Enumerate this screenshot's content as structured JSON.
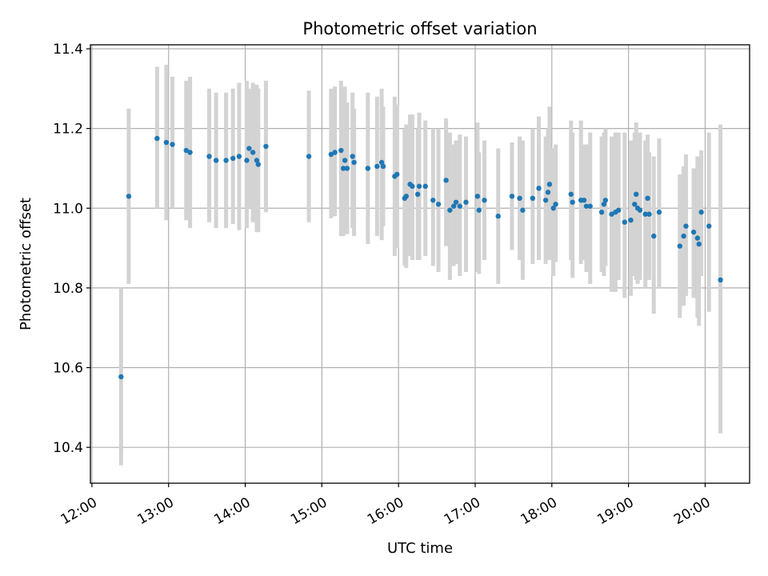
{
  "chart_data": {
    "type": "scatter",
    "title": "Photometric offset variation",
    "xlabel": "UTC time",
    "ylabel": "Photometric offset",
    "x_unit": "hours",
    "xlim": [
      11.98,
      20.58
    ],
    "ylim": [
      10.31,
      11.41
    ],
    "x_ticks": [
      12,
      13,
      14,
      15,
      16,
      17,
      18,
      19,
      20
    ],
    "x_tick_labels": [
      "12:00",
      "13:00",
      "14:00",
      "15:00",
      "16:00",
      "17:00",
      "18:00",
      "19:00",
      "20:00"
    ],
    "y_ticks": [
      10.4,
      10.6,
      10.8,
      11.0,
      11.2,
      11.4
    ],
    "y_tick_labels": [
      "10.4",
      "10.6",
      "10.8",
      "11.0",
      "11.2",
      "11.4"
    ],
    "grid": true,
    "point_color": "#1f77b4",
    "errorbar_color": "#d3d3d3",
    "series": [
      {
        "points": [
          [
            12.38,
            10.577,
            10.355,
            10.8
          ],
          [
            12.48,
            11.03,
            10.81,
            11.25
          ],
          [
            12.85,
            11.175,
            11.0,
            11.355
          ],
          [
            12.97,
            11.165,
            10.97,
            11.36
          ],
          [
            13.05,
            11.16,
            11.0,
            11.33
          ],
          [
            13.23,
            11.145,
            10.97,
            11.32
          ],
          [
            13.28,
            11.14,
            10.95,
            11.33
          ],
          [
            13.53,
            11.13,
            10.965,
            11.3
          ],
          [
            13.62,
            11.12,
            10.95,
            11.29
          ],
          [
            13.75,
            11.12,
            10.95,
            11.29
          ],
          [
            13.84,
            11.125,
            10.96,
            11.3
          ],
          [
            13.92,
            11.13,
            10.945,
            11.315
          ],
          [
            14.02,
            11.12,
            10.95,
            11.32
          ],
          [
            14.05,
            11.15,
            11.0,
            11.3
          ],
          [
            14.1,
            11.14,
            10.965,
            11.315
          ],
          [
            14.15,
            11.12,
            10.94,
            11.31
          ],
          [
            14.17,
            11.11,
            10.94,
            11.3
          ],
          [
            14.27,
            11.155,
            10.99,
            11.32
          ],
          [
            14.83,
            11.13,
            10.965,
            11.295
          ],
          [
            15.12,
            11.135,
            10.975,
            11.3
          ],
          [
            15.17,
            11.14,
            10.98,
            11.305
          ],
          [
            15.25,
            11.145,
            10.93,
            11.32
          ],
          [
            15.28,
            11.1,
            10.93,
            11.3
          ],
          [
            15.3,
            11.12,
            10.94,
            11.305
          ],
          [
            15.33,
            11.1,
            10.935,
            11.265
          ],
          [
            15.4,
            11.13,
            10.95,
            11.29
          ],
          [
            15.42,
            11.115,
            10.93,
            11.25
          ],
          [
            15.6,
            11.1,
            10.91,
            11.29
          ],
          [
            15.72,
            11.105,
            10.93,
            11.28
          ],
          [
            15.78,
            11.115,
            10.92,
            11.3
          ],
          [
            15.8,
            11.105,
            10.955,
            11.255
          ],
          [
            15.95,
            11.08,
            10.88,
            11.28
          ],
          [
            15.98,
            11.085,
            10.9,
            11.26
          ],
          [
            16.08,
            11.025,
            10.855,
            11.2
          ],
          [
            16.1,
            11.03,
            10.85,
            11.21
          ],
          [
            16.15,
            11.06,
            10.88,
            11.235
          ],
          [
            16.18,
            11.055,
            10.87,
            11.235
          ],
          [
            16.25,
            11.035,
            10.87,
            11.2
          ],
          [
            16.27,
            11.055,
            10.87,
            11.24
          ],
          [
            16.35,
            11.055,
            10.88,
            11.22
          ],
          [
            16.45,
            11.02,
            10.855,
            11.2
          ],
          [
            16.52,
            11.01,
            10.84,
            11.2
          ],
          [
            16.62,
            11.07,
            10.905,
            11.225
          ],
          [
            16.67,
            10.995,
            10.82,
            11.19
          ],
          [
            16.72,
            11.005,
            10.855,
            11.16
          ],
          [
            16.75,
            11.015,
            10.86,
            11.17
          ],
          [
            16.8,
            11.005,
            10.83,
            11.185
          ],
          [
            16.88,
            11.015,
            10.84,
            11.18
          ],
          [
            17.03,
            11.03,
            10.84,
            11.215
          ],
          [
            17.05,
            10.995,
            10.835,
            11.14
          ],
          [
            17.12,
            11.02,
            10.87,
            11.17
          ],
          [
            17.3,
            10.98,
            10.81,
            11.15
          ],
          [
            17.48,
            11.03,
            10.895,
            11.165
          ],
          [
            17.58,
            11.025,
            10.87,
            11.18
          ],
          [
            17.62,
            10.995,
            10.82,
            11.17
          ],
          [
            17.75,
            11.025,
            10.86,
            11.2
          ],
          [
            17.83,
            11.05,
            10.87,
            11.23
          ],
          [
            17.92,
            11.02,
            10.86,
            11.18
          ],
          [
            17.95,
            11.04,
            10.87,
            11.2
          ],
          [
            17.97,
            11.06,
            10.87,
            11.255
          ],
          [
            18.02,
            11.0,
            10.83,
            11.15
          ],
          [
            18.05,
            11.01,
            10.865,
            11.16
          ],
          [
            18.25,
            11.035,
            10.87,
            11.22
          ],
          [
            18.27,
            11.015,
            10.825,
            11.19
          ],
          [
            18.38,
            11.02,
            10.86,
            11.22
          ],
          [
            18.42,
            11.02,
            10.87,
            11.16
          ],
          [
            18.45,
            11.005,
            10.84,
            11.16
          ],
          [
            18.5,
            11.005,
            10.81,
            11.19
          ],
          [
            18.65,
            10.99,
            10.84,
            11.18
          ],
          [
            18.68,
            11.01,
            10.83,
            11.19
          ],
          [
            18.7,
            11.02,
            10.855,
            11.2
          ],
          [
            18.78,
            10.985,
            10.79,
            11.18
          ],
          [
            18.83,
            10.99,
            10.79,
            11.19
          ],
          [
            18.87,
            10.995,
            10.82,
            11.19
          ],
          [
            18.95,
            10.965,
            10.775,
            11.19
          ],
          [
            19.03,
            10.97,
            10.78,
            11.17
          ],
          [
            19.08,
            11.01,
            10.83,
            11.19
          ],
          [
            19.1,
            11.035,
            10.82,
            11.215
          ],
          [
            19.12,
            11.0,
            10.81,
            11.185
          ],
          [
            19.15,
            10.995,
            10.82,
            11.19
          ],
          [
            19.22,
            10.985,
            10.8,
            11.17
          ],
          [
            19.25,
            11.025,
            10.87,
            11.185
          ],
          [
            19.27,
            10.985,
            10.82,
            11.14
          ],
          [
            19.33,
            10.93,
            10.735,
            11.13
          ],
          [
            19.4,
            10.99,
            10.8,
            11.175
          ],
          [
            19.67,
            10.905,
            10.725,
            11.085
          ],
          [
            19.72,
            10.93,
            10.755,
            11.105
          ],
          [
            19.75,
            10.955,
            10.78,
            11.135
          ],
          [
            19.85,
            10.94,
            10.775,
            11.1
          ],
          [
            19.9,
            10.925,
            10.725,
            11.13
          ],
          [
            19.92,
            10.91,
            10.705,
            11.13
          ],
          [
            19.95,
            10.99,
            10.83,
            11.145
          ],
          [
            20.05,
            10.955,
            10.74,
            11.19
          ],
          [
            20.2,
            10.82,
            10.435,
            11.21
          ]
        ]
      }
    ]
  }
}
